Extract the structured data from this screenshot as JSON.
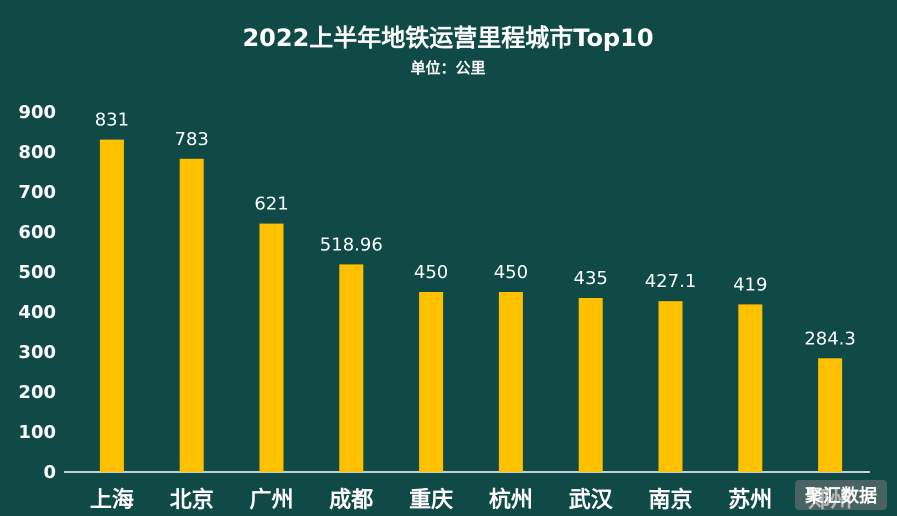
{
  "chart_data": {
    "type": "bar",
    "title": "2022上半年地铁运营里程城市Top10",
    "subtitle": "单位：公里",
    "categories": [
      "上海",
      "北京",
      "广州",
      "成都",
      "重庆",
      "杭州",
      "武汉",
      "南京",
      "苏州",
      "郑州"
    ],
    "values": [
      831,
      783,
      621,
      518.96,
      450,
      450,
      435,
      427.1,
      419,
      284.3
    ],
    "data_labels": [
      "831",
      "783",
      "621",
      "518.96",
      "450",
      "450",
      "435",
      "427.1",
      "419",
      "284.3"
    ],
    "ylim": [
      0,
      900
    ],
    "yticks": [
      0,
      100,
      200,
      300,
      400,
      500,
      600,
      700,
      800,
      900
    ],
    "grid": false,
    "bar_color": "#ffc000",
    "background_color": "#0f4a47"
  },
  "watermark": "聚汇数据"
}
